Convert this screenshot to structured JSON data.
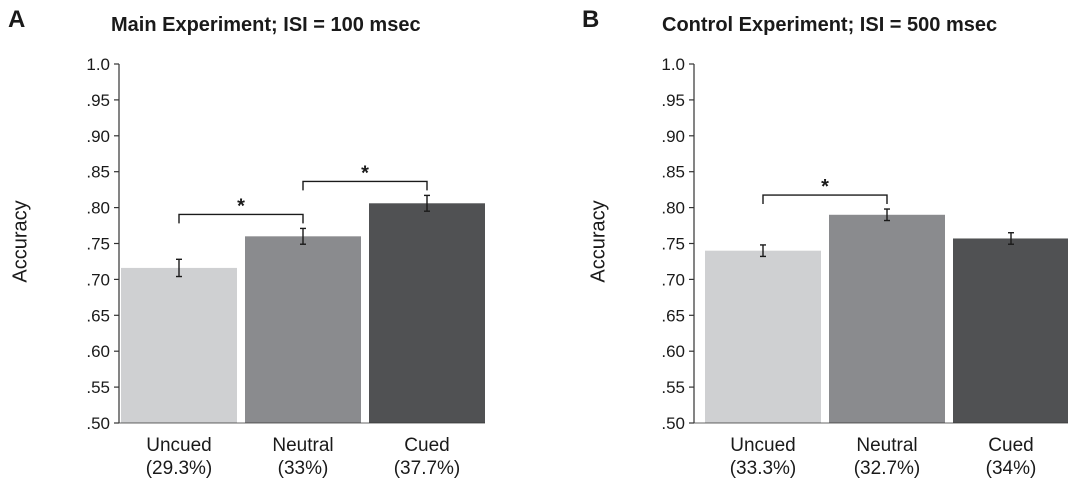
{
  "chart_data": [
    {
      "panel": "A",
      "type": "bar",
      "title": "Main Experiment; ISI = 100 msec",
      "ylabel": "Accuracy",
      "ylim": [
        0.5,
        1.0
      ],
      "yticks": [
        "1.0",
        ".95",
        ".90",
        ".85",
        ".80",
        ".75",
        ".70",
        ".65",
        ".60",
        ".55",
        ".50"
      ],
      "categories": [
        "Uncued",
        "Neutral",
        "Cued"
      ],
      "sublabels": [
        "(29.3%)",
        "(33%)",
        "(37.7%)"
      ],
      "values": [
        0.716,
        0.76,
        0.806
      ],
      "errors": [
        0.012,
        0.011,
        0.011
      ],
      "colors": [
        "#cfd0d2",
        "#8a8b8e",
        "#505153"
      ],
      "significance": [
        {
          "from": 0,
          "to": 1,
          "label": "*"
        },
        {
          "from": 1,
          "to": 2,
          "label": "*"
        }
      ]
    },
    {
      "panel": "B",
      "type": "bar",
      "title": "Control Experiment; ISI = 500 msec",
      "ylabel": "Accuracy",
      "ylim": [
        0.5,
        1.0
      ],
      "yticks": [
        "1.0",
        ".95",
        ".90",
        ".85",
        ".80",
        ".75",
        ".70",
        ".65",
        ".60",
        ".55",
        ".50"
      ],
      "categories": [
        "Uncued",
        "Neutral",
        "Cued"
      ],
      "sublabels": [
        "(33.3%)",
        "(32.7%)",
        "(34%)"
      ],
      "values": [
        0.74,
        0.79,
        0.757
      ],
      "errors": [
        0.008,
        0.008,
        0.008
      ],
      "colors": [
        "#cfd0d2",
        "#8a8b8e",
        "#505153"
      ],
      "significance": [
        {
          "from": 0,
          "to": 1,
          "label": "*"
        }
      ]
    }
  ]
}
